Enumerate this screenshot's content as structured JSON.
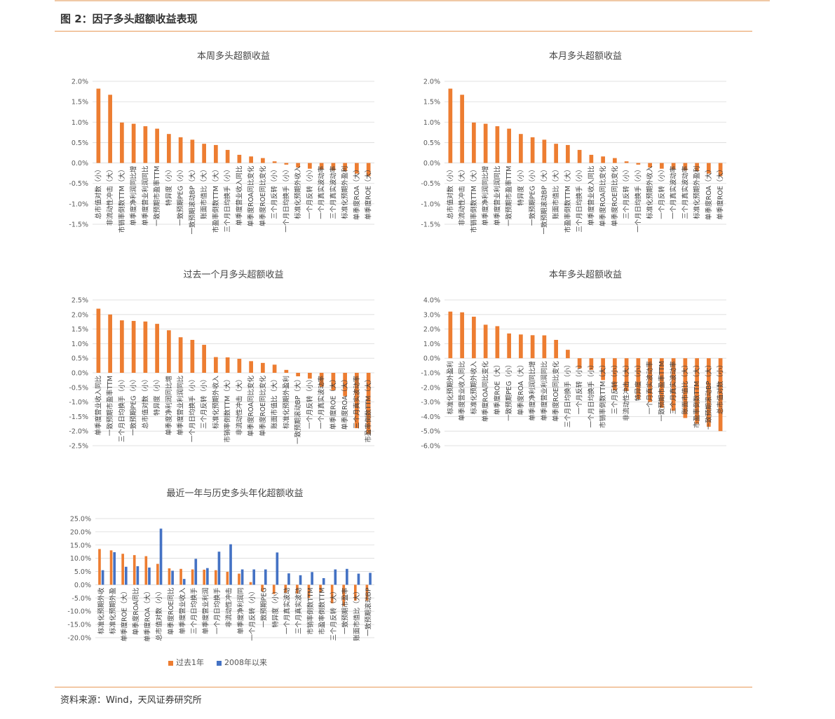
{
  "figure": {
    "title": "图 2：因子多头超额收益表现",
    "source": "资料来源：Wind，天风证券研究所"
  },
  "colors": {
    "orange": "#ed7d31",
    "blue": "#4472c4",
    "grid": "#d9d9d9",
    "rule": "#e89a58"
  },
  "chart_data": [
    {
      "type": "bar",
      "title": "本周多头超额收益",
      "ylim": [
        -0.015,
        0.02
      ],
      "ytick_step": 0.005,
      "ytick_decimals": 1,
      "grid": true,
      "categories": [
        "总市值对数（小）",
        "非流动性冲击（大）",
        "市销率倒数TTM（大）",
        "单季度净利润同比增",
        "单季度营业利润同比",
        "一致预期市盈率TTM",
        "特异度（小）",
        "一致预期PEG（小）",
        "一致预期滚动BP（大）",
        "账面市值比（大）",
        "市盈率倒数TTM（大）",
        "三个月日均换手（小）",
        "单季度营业收入同比",
        "单季度ROA同比变化",
        "单季度ROE同比变化",
        "三个月反转（小）",
        "一个月日均换手（小）",
        "标准化预期外收入",
        "一个月反转（小）",
        "一个月真实波动率",
        "三个月真实波动率",
        "标准化预期外盈利",
        "单季度ROA（大）",
        "单季度ROE（大）"
      ],
      "series": [
        {
          "values": [
            0.0182,
            0.0167,
            0.0099,
            0.0096,
            0.009,
            0.0084,
            0.0071,
            0.0063,
            0.0057,
            0.0047,
            0.0044,
            0.0032,
            0.002,
            0.0016,
            0.0012,
            0.0004,
            -0.0004,
            -0.0011,
            -0.0014,
            -0.0016,
            -0.0018,
            -0.002,
            -0.0026,
            -0.0032
          ]
        }
      ]
    },
    {
      "type": "bar",
      "title": "本月多头超额收益",
      "ylim": [
        -0.015,
        0.02
      ],
      "ytick_step": 0.005,
      "ytick_decimals": 1,
      "grid": true,
      "categories": [
        "总市值对数（小）",
        "非流动性冲击（大）",
        "市销率倒数TTM（大）",
        "单季度净利润同比增",
        "单季度营业利润同比",
        "一致预期市盈率TTM",
        "特异度（小）",
        "一致预期PEG（小）",
        "一致预期滚动BP（大）",
        "账面市值比（大）",
        "市盈率倒数TTM（大）",
        "三个月日均换手（小）",
        "单季度营业收入同比",
        "单季度ROA同比变化",
        "单季度ROE同比变化",
        "三个月反转（小）",
        "一个月日均换手（小）",
        "标准化预期外收入",
        "一个月反转（小）",
        "一个月真实波动率",
        "三个月真实波动率",
        "标准化预期外盈利",
        "单季度ROA（大）",
        "单季度ROE（大）"
      ],
      "series": [
        {
          "values": [
            0.0182,
            0.0167,
            0.0099,
            0.0096,
            0.009,
            0.0084,
            0.0071,
            0.0063,
            0.0057,
            0.0047,
            0.0044,
            0.0032,
            0.002,
            0.0016,
            0.0012,
            0.0004,
            -0.0004,
            -0.0011,
            -0.0014,
            -0.0016,
            -0.0018,
            -0.002,
            -0.0026,
            -0.0032
          ]
        }
      ]
    },
    {
      "type": "bar",
      "title": "过去一个月多头超额收益",
      "ylim": [
        -0.025,
        0.025
      ],
      "ytick_step": 0.005,
      "ytick_decimals": 1,
      "grid": true,
      "categories": [
        "单季度营业收入同比",
        "一致预期市盈率TTM",
        "三个月日均换手（小）",
        "一致预期PEG（小）",
        "总市值对数（小）",
        "特异度（小）",
        "单季度净利润同比增",
        "单季度营业利润同比",
        "一个月日均换手（小）",
        "三个月反转（小）",
        "标准化预期外收入",
        "市销率倒数TTM（大）",
        "非流动性冲击（大）",
        "单季度ROA同比变化",
        "单季度ROE同比变化",
        "账面市值比（大）",
        "标准化预期外盈利",
        "一致预期滚动BP（大）",
        "一个月反转（小）",
        "一个月真实波动率",
        "单季度ROE（大）",
        "单季度ROA（大）",
        "三个月真实波动率",
        "市盈率倒数TTM（大）"
      ],
      "series": [
        {
          "values": [
            0.022,
            0.02,
            0.018,
            0.0178,
            0.0176,
            0.0168,
            0.0146,
            0.0122,
            0.0113,
            0.0096,
            0.0054,
            0.0053,
            0.0048,
            0.004,
            0.0034,
            0.0028,
            0.001,
            -0.0012,
            -0.002,
            -0.0048,
            -0.006,
            -0.008,
            -0.019,
            -0.021
          ]
        }
      ]
    },
    {
      "type": "bar",
      "title": "本年多头超额收益",
      "ylim": [
        -0.06,
        0.04
      ],
      "ytick_step": 0.01,
      "ytick_decimals": 1,
      "grid": true,
      "categories": [
        "标准化预期外盈利",
        "单季度营业收入同比",
        "标准化预期外收入",
        "单季度ROA同比变化",
        "单季度ROE（大）",
        "一致预期PEG（小）",
        "单季度ROA（大）",
        "单季度净利润同比增",
        "单季度营业利润同比",
        "单季度ROE同比变化",
        "三个月日均换手（小）",
        "一个月反转（小）",
        "一个月日均换手（小）",
        "市销率倒数TTM（大）",
        "三个月反转（小）",
        "非流动性冲击（大）",
        "特异度（小）",
        "一个月真实波动率",
        "一致预期市盈率TTM",
        "三个月真实波动率",
        "账面市值比（大）",
        "市盈率倒数TTM（大）",
        "一致预期滚动BP（大）",
        "总市值对数（小）"
      ],
      "series": [
        {
          "values": [
            0.032,
            0.0315,
            0.0285,
            0.023,
            0.022,
            0.017,
            0.0163,
            0.0158,
            0.0157,
            0.0126,
            0.0058,
            -0.007,
            -0.008,
            -0.015,
            -0.022,
            -0.0225,
            -0.028,
            -0.03,
            -0.034,
            -0.036,
            -0.041,
            -0.045,
            -0.047,
            -0.05
          ]
        }
      ]
    },
    {
      "type": "bar",
      "title": "最近一年与历史多头年化超额收益",
      "ylim": [
        -0.2,
        0.25
      ],
      "ytick_step": 0.05,
      "ytick_decimals": 1,
      "grid": true,
      "legend": "bottom",
      "categories": [
        "标准化预期外收",
        "标准化预期外盈",
        "单季度ROE（大）",
        "单季度ROA同比",
        "单季度ROA（大）",
        "总市值对数（小）",
        "单季度ROE同比",
        "单季度营业收入",
        "三个月日均换手",
        "单季度营业利润",
        "一个月日均换手",
        "非流动性冲击",
        "单季度净利润同",
        "一个月反转（小）",
        "一致预期PEG",
        "特异度（小）",
        "一个月真实波动",
        "三个月真实波动",
        "市销率倒数TTM",
        "市盈率倒数TTM",
        "三个月反转（大）",
        "一致预期市盈率",
        "账面市值比（大）",
        "一致预期滚动BP"
      ],
      "series": [
        {
          "name": "过去1年",
          "values": [
            0.135,
            0.13,
            0.117,
            0.112,
            0.108,
            0.079,
            0.062,
            0.06,
            0.058,
            0.057,
            0.055,
            0.049,
            0.042,
            0.01,
            -0.025,
            -0.035,
            -0.03,
            -0.033,
            -0.05,
            -0.03,
            -0.07,
            -0.08,
            -0.06,
            -0.06
          ]
        },
        {
          "name": "2008年以来",
          "values": [
            0.055,
            0.123,
            0.068,
            0.07,
            0.065,
            0.212,
            0.053,
            0.022,
            0.098,
            0.063,
            0.125,
            0.153,
            0.058,
            0.058,
            0.058,
            0.122,
            0.043,
            0.036,
            0.048,
            0.025,
            0.058,
            0.06,
            0.042,
            0.045
          ]
        }
      ]
    }
  ]
}
